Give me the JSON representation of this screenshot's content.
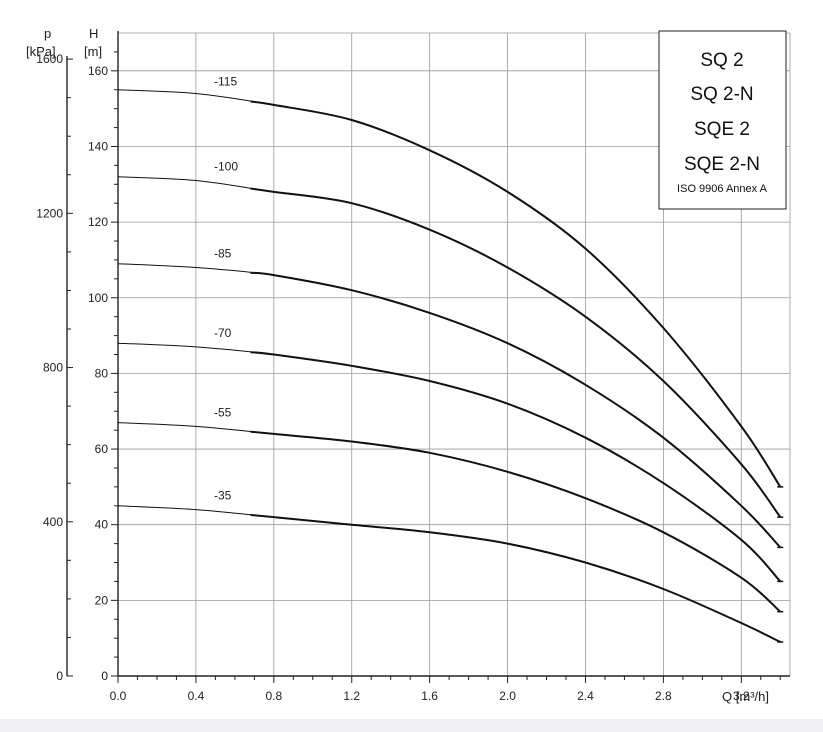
{
  "chart_data": {
    "type": "line",
    "legend_box": {
      "titles": [
        "SQ 2",
        "SQ 2-N",
        "SQE 2",
        "SQE 2-N"
      ],
      "standard": "ISO 9906 Annex A",
      "placement": "top-right"
    },
    "x_axis": {
      "label": "Q [m³/h]",
      "range": [
        0,
        3.45
      ],
      "ticks": [
        "0.0",
        "0.4",
        "0.8",
        "1.2",
        "1.6",
        "2.0",
        "2.4",
        "2.8",
        "3.2"
      ]
    },
    "y_axis_head": {
      "label_top": "H",
      "label_unit": "[m]",
      "range": [
        0,
        170
      ],
      "ticks": [
        "0",
        "20",
        "40",
        "60",
        "80",
        "100",
        "120",
        "140",
        "160"
      ]
    },
    "y_axis_pressure": {
      "label_top": "p",
      "label_unit": "[kPa]",
      "ticks": [
        "0",
        "400",
        "800",
        "1200",
        "1600"
      ]
    },
    "grid": true,
    "series": [
      {
        "name": "-115",
        "x": [
          0,
          0.4,
          0.8,
          1.2,
          1.6,
          2.0,
          2.4,
          2.8,
          3.2,
          3.4
        ],
        "y": [
          155,
          154,
          151,
          147,
          139,
          128,
          113,
          92,
          66,
          50
        ]
      },
      {
        "name": "-100",
        "x": [
          0,
          0.4,
          0.8,
          1.2,
          1.6,
          2.0,
          2.4,
          2.8,
          3.2,
          3.4
        ],
        "y": [
          132,
          131,
          128,
          125,
          118,
          108,
          95,
          78,
          56,
          42
        ]
      },
      {
        "name": "-85",
        "x": [
          0,
          0.4,
          0.8,
          1.2,
          1.6,
          2.0,
          2.4,
          2.8,
          3.2,
          3.4
        ],
        "y": [
          109,
          108,
          106,
          102,
          96,
          88,
          77,
          63,
          45,
          34
        ]
      },
      {
        "name": "-70",
        "x": [
          0,
          0.4,
          0.8,
          1.2,
          1.6,
          2.0,
          2.4,
          2.8,
          3.2,
          3.4
        ],
        "y": [
          88,
          87,
          85,
          82,
          78,
          72,
          63,
          51,
          36,
          25
        ]
      },
      {
        "name": "-55",
        "x": [
          0,
          0.4,
          0.8,
          1.2,
          1.6,
          2.0,
          2.4,
          2.8,
          3.2,
          3.4
        ],
        "y": [
          67,
          66,
          64,
          62,
          59,
          54,
          47,
          38,
          26,
          17
        ]
      },
      {
        "name": "-35",
        "x": [
          0,
          0.4,
          0.8,
          1.2,
          1.6,
          2.0,
          2.4,
          2.8,
          3.2,
          3.4
        ],
        "y": [
          45,
          44,
          42,
          40,
          38,
          35,
          30,
          23,
          14,
          9
        ]
      }
    ]
  }
}
